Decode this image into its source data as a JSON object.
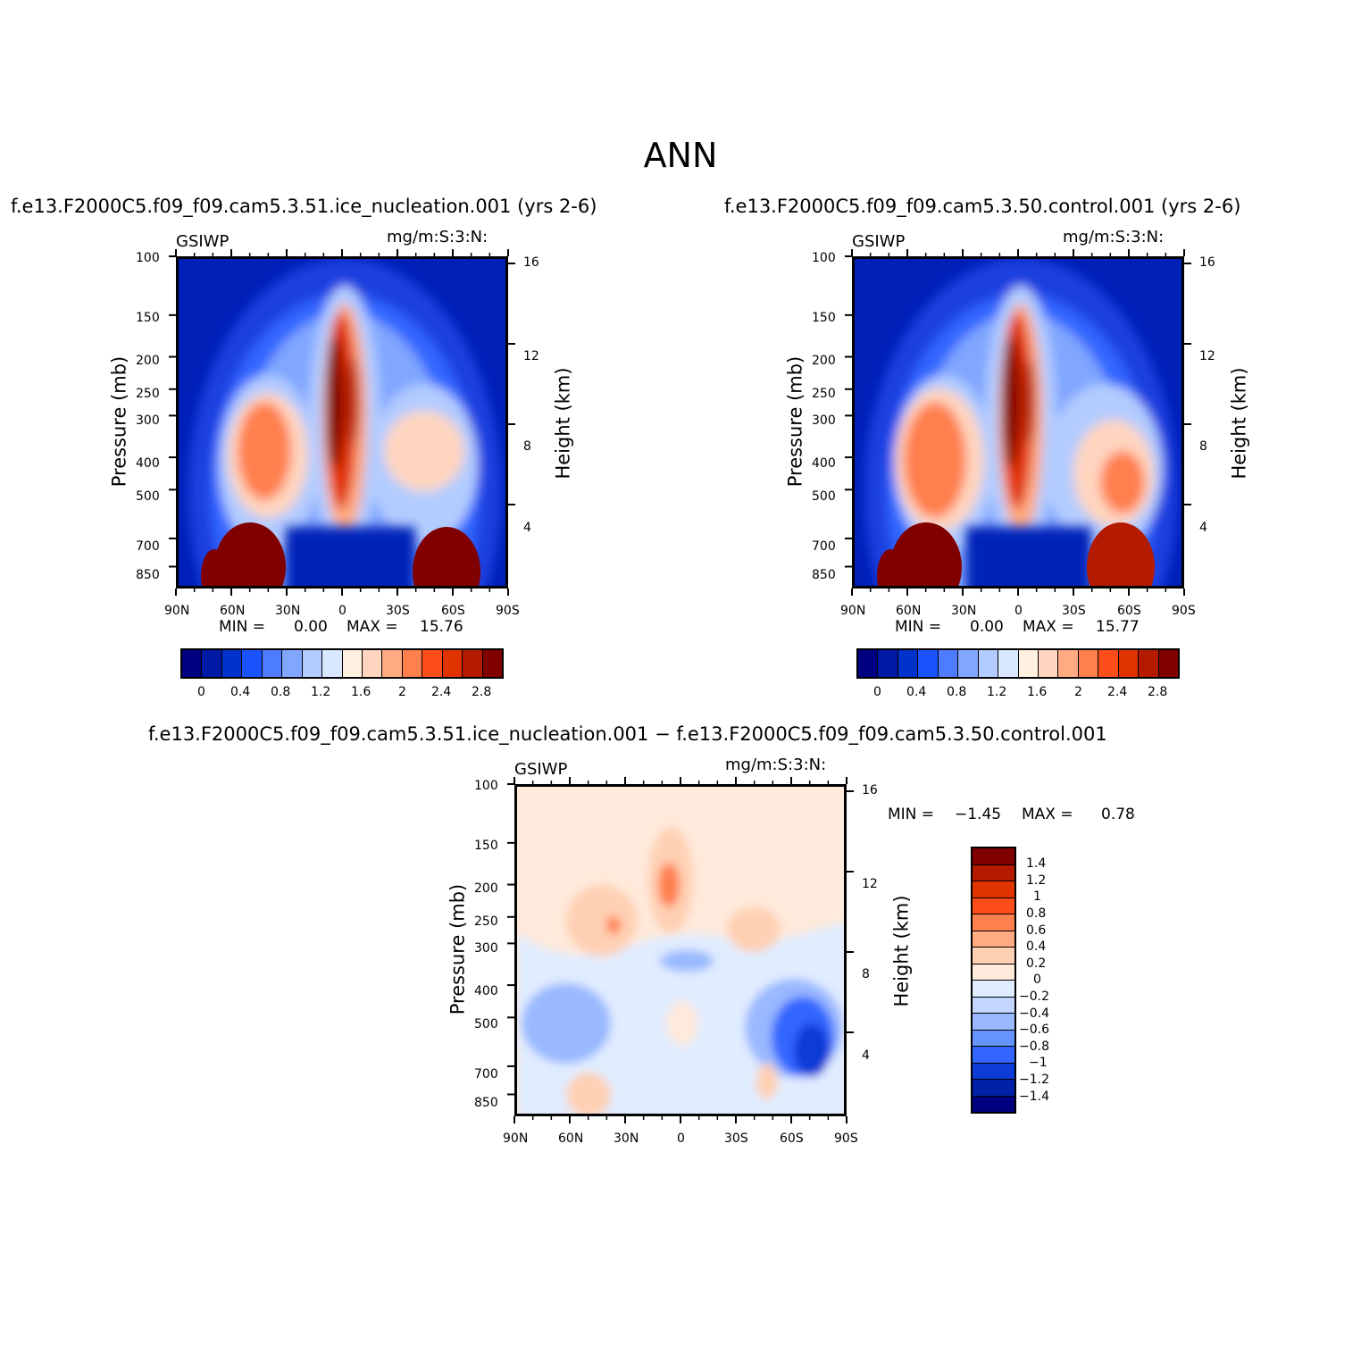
{
  "chart_data": {
    "type": "heatmap",
    "title": "ANN",
    "panels": [
      {
        "title": "f.e13.F2000C5.f09_f09.cam5.3.51.ice_nucleation.001 (yrs 2-6)",
        "variable": "GSIWP",
        "units": "mg/m:S:3:N:",
        "xlabel": "",
        "ylabel": "Pressure (mb)",
        "y2label": "Height (km)",
        "x_ticks": [
          "90N",
          "60N",
          "30N",
          "0",
          "30S",
          "60S",
          "90S"
        ],
        "y_ticks": [
          "100",
          "150",
          "200",
          "250",
          "300",
          "400",
          "500",
          "700",
          "850"
        ],
        "y2_ticks": [
          "16",
          "12",
          "8",
          "4"
        ],
        "ylim": [
          100,
          1000
        ],
        "min_label": "MIN =",
        "min_value": "0.00",
        "max_label": "MAX =",
        "max_value": "15.76",
        "colorbar_labels": [
          "0",
          "0.4",
          "0.8",
          "1.2",
          "1.6",
          "2",
          "2.4",
          "2.8"
        ]
      },
      {
        "title": "f.e13.F2000C5.f09_f09.cam5.3.50.control.001 (yrs 2-6)",
        "variable": "GSIWP",
        "units": "mg/m:S:3:N:",
        "xlabel": "",
        "ylabel": "Pressure (mb)",
        "y2label": "Height (km)",
        "x_ticks": [
          "90N",
          "60N",
          "30N",
          "0",
          "30S",
          "60S",
          "90S"
        ],
        "y_ticks": [
          "100",
          "150",
          "200",
          "250",
          "300",
          "400",
          "500",
          "700",
          "850"
        ],
        "y2_ticks": [
          "16",
          "12",
          "8",
          "4"
        ],
        "ylim": [
          100,
          1000
        ],
        "min_label": "MIN =",
        "min_value": "0.00",
        "max_label": "MAX =",
        "max_value": "15.77",
        "colorbar_labels": [
          "0",
          "0.4",
          "0.8",
          "1.2",
          "1.6",
          "2",
          "2.4",
          "2.8"
        ]
      },
      {
        "title": "f.e13.F2000C5.f09_f09.cam5.3.51.ice_nucleation.001 − f.e13.F2000C5.f09_f09.cam5.3.50.control.001",
        "variable": "GSIWP",
        "units": "mg/m:S:3:N:",
        "xlabel": "",
        "ylabel": "Pressure (mb)",
        "y2label": "Height (km)",
        "x_ticks": [
          "90N",
          "60N",
          "30N",
          "0",
          "30S",
          "60S",
          "90S"
        ],
        "y_ticks": [
          "100",
          "150",
          "200",
          "250",
          "300",
          "400",
          "500",
          "700",
          "850"
        ],
        "y2_ticks": [
          "16",
          "12",
          "8",
          "4"
        ],
        "ylim": [
          100,
          1000
        ],
        "min_label": "MIN =",
        "min_value": "−1.45",
        "max_label": "MAX =",
        "max_value": "0.78",
        "colorbar_labels": [
          "1.4",
          "1.2",
          "1",
          "0.8",
          "0.6",
          "0.4",
          "0.2",
          "0",
          "−0.2",
          "−0.4",
          "−0.6",
          "−0.8",
          "−1",
          "−1.2",
          "−1.4"
        ]
      }
    ],
    "seq_colors": [
      "#000080",
      "#001aa6",
      "#0033cc",
      "#1a53ff",
      "#4d7cff",
      "#80a6ff",
      "#b3ccff",
      "#d9e8ff",
      "#fff0e0",
      "#ffd5bf",
      "#ffaa80",
      "#ff7f4d",
      "#ff4d1a",
      "#e03300",
      "#b31a00",
      "#800000"
    ],
    "diff_colors": [
      "#800000",
      "#b31a00",
      "#e03300",
      "#ff4d1a",
      "#ff7f4d",
      "#ffaa80",
      "#ffd0b3",
      "#ffeadb",
      "#e0ecff",
      "#c2d6ff",
      "#99b8ff",
      "#6694ff",
      "#3366ff",
      "#0d3bd6",
      "#0020a8",
      "#000080"
    ]
  }
}
